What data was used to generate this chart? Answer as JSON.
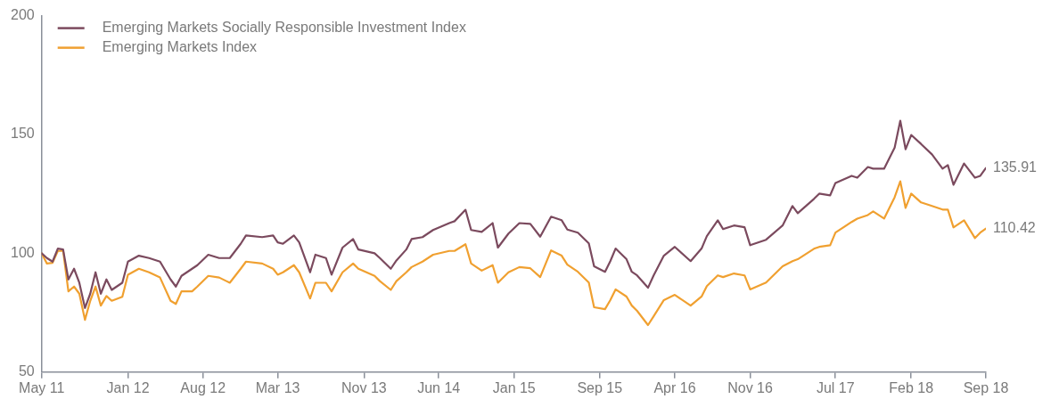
{
  "chart_data": {
    "type": "line",
    "x": [
      "2011-05-01",
      "2011-05-16",
      "2011-06-01",
      "2011-06-16",
      "2011-07-01",
      "2011-07-16",
      "2011-08-01",
      "2011-08-16",
      "2011-09-01",
      "2011-09-16",
      "2011-10-01",
      "2011-10-16",
      "2011-11-01",
      "2011-11-16",
      "2011-12-16",
      "2012-01-01",
      "2012-02-01",
      "2012-03-01",
      "2012-04-01",
      "2012-05-01",
      "2012-05-16",
      "2012-06-01",
      "2012-07-01",
      "2012-07-16",
      "2012-08-16",
      "2012-09-16",
      "2012-10-16",
      "2012-11-16",
      "2012-12-01",
      "2013-01-16",
      "2013-02-16",
      "2013-03-01",
      "2013-03-16",
      "2013-04-16",
      "2013-05-01",
      "2013-06-01",
      "2013-06-16",
      "2013-07-16",
      "2013-08-01",
      "2013-09-01",
      "2013-10-01",
      "2013-10-16",
      "2013-12-01",
      "2013-12-16",
      "2014-01-16",
      "2014-02-01",
      "2014-03-01",
      "2014-03-16",
      "2014-04-16",
      "2014-05-16",
      "2014-07-01",
      "2014-07-16",
      "2014-08-16",
      "2014-09-01",
      "2014-10-01",
      "2014-11-01",
      "2014-11-16",
      "2014-12-16",
      "2015-01-16",
      "2015-02-16",
      "2015-03-16",
      "2015-04-16",
      "2015-05-16",
      "2015-06-01",
      "2015-07-01",
      "2015-08-01",
      "2015-08-16",
      "2015-09-16",
      "2015-10-01",
      "2015-10-16",
      "2015-11-16",
      "2015-12-01",
      "2015-12-16",
      "2016-01-16",
      "2016-02-01",
      "2016-03-01",
      "2016-04-01",
      "2016-05-16",
      "2016-06-16",
      "2016-07-01",
      "2016-08-01",
      "2016-08-16",
      "2016-09-16",
      "2016-10-16",
      "2016-11-01",
      "2016-12-16",
      "2017-02-01",
      "2017-03-01",
      "2017-03-16",
      "2017-05-01",
      "2017-05-16",
      "2017-06-16",
      "2017-07-01",
      "2017-08-16",
      "2017-09-01",
      "2017-10-01",
      "2017-10-16",
      "2017-11-16",
      "2017-12-16",
      "2018-01-01",
      "2018-01-16",
      "2018-02-01",
      "2018-03-01",
      "2018-04-01",
      "2018-05-01",
      "2018-05-16",
      "2018-06-01",
      "2018-07-01",
      "2018-08-01",
      "2018-08-16",
      "2018-09-01"
    ],
    "series": [
      {
        "name": "Emerging Markets Socially Responsible Investment Index",
        "color": "#7b4a5e",
        "values": [
          100,
          98,
          96.5,
          102,
          101.6,
          89,
          93.5,
          87.6,
          77,
          83,
          92,
          83,
          89,
          84.6,
          87.6,
          96.5,
          99,
          98,
          96.5,
          89,
          86,
          90.5,
          93.5,
          95,
          99.4,
          98,
          98,
          104,
          107.5,
          106.8,
          107.5,
          104.6,
          104,
          107.5,
          104.6,
          92,
          99.4,
          98,
          91,
          102.4,
          106,
          101.6,
          100,
          98,
          93.5,
          97,
          101.6,
          106,
          106.8,
          109.8,
          112.7,
          113.5,
          118.3,
          109.8,
          109,
          112.7,
          102.4,
          108.3,
          112.7,
          112.4,
          107,
          115.4,
          113.9,
          110,
          108.7,
          104.2,
          94.5,
          92.2,
          96.7,
          102,
          97.5,
          92.2,
          90.7,
          85.5,
          90.7,
          99,
          102.7,
          96.7,
          102,
          107.2,
          113.9,
          110.2,
          111.7,
          111,
          103.4,
          105.7,
          111.7,
          119.9,
          116.9,
          122.9,
          125.1,
          124.4,
          129.6,
          132.6,
          131.8,
          136.3,
          135.6,
          135.6,
          144.5,
          155.8,
          143.8,
          149.8,
          146,
          141.6,
          135.6,
          137.1,
          128.8,
          137.8,
          131.8,
          132.6,
          135.91
        ],
        "value_labels": [
          null,
          null,
          null,
          null,
          null,
          null,
          null,
          null,
          null,
          null,
          null,
          null,
          null,
          null,
          null,
          null,
          null,
          null,
          null,
          null,
          null,
          null,
          null,
          null,
          null,
          null,
          null,
          null,
          null,
          null,
          null,
          null,
          null,
          null,
          null,
          null,
          null,
          null,
          null,
          null,
          null,
          null,
          null,
          null,
          null,
          null,
          null,
          null,
          null,
          null,
          null,
          null,
          null,
          null,
          null,
          null,
          null,
          null,
          null,
          null,
          null,
          null,
          null,
          null,
          null,
          null,
          null,
          null,
          null,
          null,
          null,
          null,
          null,
          null,
          null,
          null,
          null,
          null,
          null,
          null,
          null,
          null,
          null,
          null,
          null,
          null,
          null,
          null,
          null,
          null,
          null,
          null,
          null,
          null,
          null,
          null,
          null,
          null,
          null,
          null,
          null,
          null,
          null,
          null,
          null,
          null,
          null,
          null,
          null,
          null,
          "135.91"
        ]
      },
      {
        "name": "Emerging Markets Index",
        "color": "#f0a030",
        "values": [
          100,
          95.7,
          96,
          101,
          101,
          84,
          86,
          83,
          72,
          80,
          86,
          78,
          82,
          80,
          81.7,
          91,
          93.5,
          92,
          89.8,
          80,
          78.7,
          84,
          84,
          86,
          90.5,
          89.8,
          87.6,
          93.5,
          96.5,
          95.7,
          93.5,
          91,
          92,
          95,
          92,
          81,
          87.6,
          87.6,
          84,
          92,
          95.7,
          93.5,
          90.5,
          88.3,
          84.6,
          88.3,
          92,
          94.2,
          96.5,
          99.4,
          101,
          101,
          103.8,
          95.7,
          92.7,
          95,
          87.6,
          92,
          94.2,
          93.7,
          90,
          101.2,
          99,
          95.2,
          92.2,
          87.7,
          77.3,
          76.5,
          80.3,
          84.8,
          81.8,
          78,
          75.8,
          69.8,
          73.5,
          80.3,
          82.5,
          78,
          81.8,
          86.2,
          90.7,
          90,
          91.5,
          90.7,
          84.8,
          87.7,
          94.5,
          96.7,
          97.5,
          101.9,
          102.7,
          103.4,
          108.7,
          113.2,
          114.6,
          116.1,
          117.6,
          114.6,
          123.6,
          130.3,
          119.1,
          125.1,
          121.4,
          119.9,
          118.4,
          118.4,
          110.9,
          113.9,
          106.4,
          108.7,
          110.42
        ],
        "value_labels": [
          null,
          null,
          null,
          null,
          null,
          null,
          null,
          null,
          null,
          null,
          null,
          null,
          null,
          null,
          null,
          null,
          null,
          null,
          null,
          null,
          null,
          null,
          null,
          null,
          null,
          null,
          null,
          null,
          null,
          null,
          null,
          null,
          null,
          null,
          null,
          null,
          null,
          null,
          null,
          null,
          null,
          null,
          null,
          null,
          null,
          null,
          null,
          null,
          null,
          null,
          null,
          null,
          null,
          null,
          null,
          null,
          null,
          null,
          null,
          null,
          null,
          null,
          null,
          null,
          null,
          null,
          null,
          null,
          null,
          null,
          null,
          null,
          null,
          null,
          null,
          null,
          null,
          null,
          null,
          null,
          null,
          null,
          null,
          null,
          null,
          null,
          null,
          null,
          null,
          null,
          null,
          null,
          null,
          null,
          null,
          null,
          null,
          null,
          null,
          null,
          null,
          null,
          null,
          null,
          null,
          null,
          null,
          null,
          null,
          null,
          "110.42"
        ]
      }
    ],
    "xlim": [
      "2011-05-01",
      "2018-09-01"
    ],
    "xticks": [
      {
        "value": "2011-05-01",
        "label": "May 11"
      },
      {
        "value": "2012-01-01",
        "label": "Jan 12"
      },
      {
        "value": "2012-08-01",
        "label": "Aug 12"
      },
      {
        "value": "2013-03-01",
        "label": "Mar 13"
      },
      {
        "value": "2013-11-01",
        "label": "Nov 13"
      },
      {
        "value": "2014-06-01",
        "label": "Jun 14"
      },
      {
        "value": "2015-01-01",
        "label": "Jan 15"
      },
      {
        "value": "2015-09-01",
        "label": "Sep 15"
      },
      {
        "value": "2016-04-01",
        "label": "Apr 16"
      },
      {
        "value": "2016-11-01",
        "label": "Nov 16"
      },
      {
        "value": "2017-07-01",
        "label": "Jul 17"
      },
      {
        "value": "2018-02-01",
        "label": "Feb 18"
      },
      {
        "value": "2018-09-01",
        "label": "Sep 18"
      }
    ],
    "ylim": [
      50,
      200
    ],
    "yticks": [
      50,
      100,
      150,
      200
    ],
    "grid": false,
    "legend": "top left",
    "marker": "none",
    "line_style": "solid"
  }
}
